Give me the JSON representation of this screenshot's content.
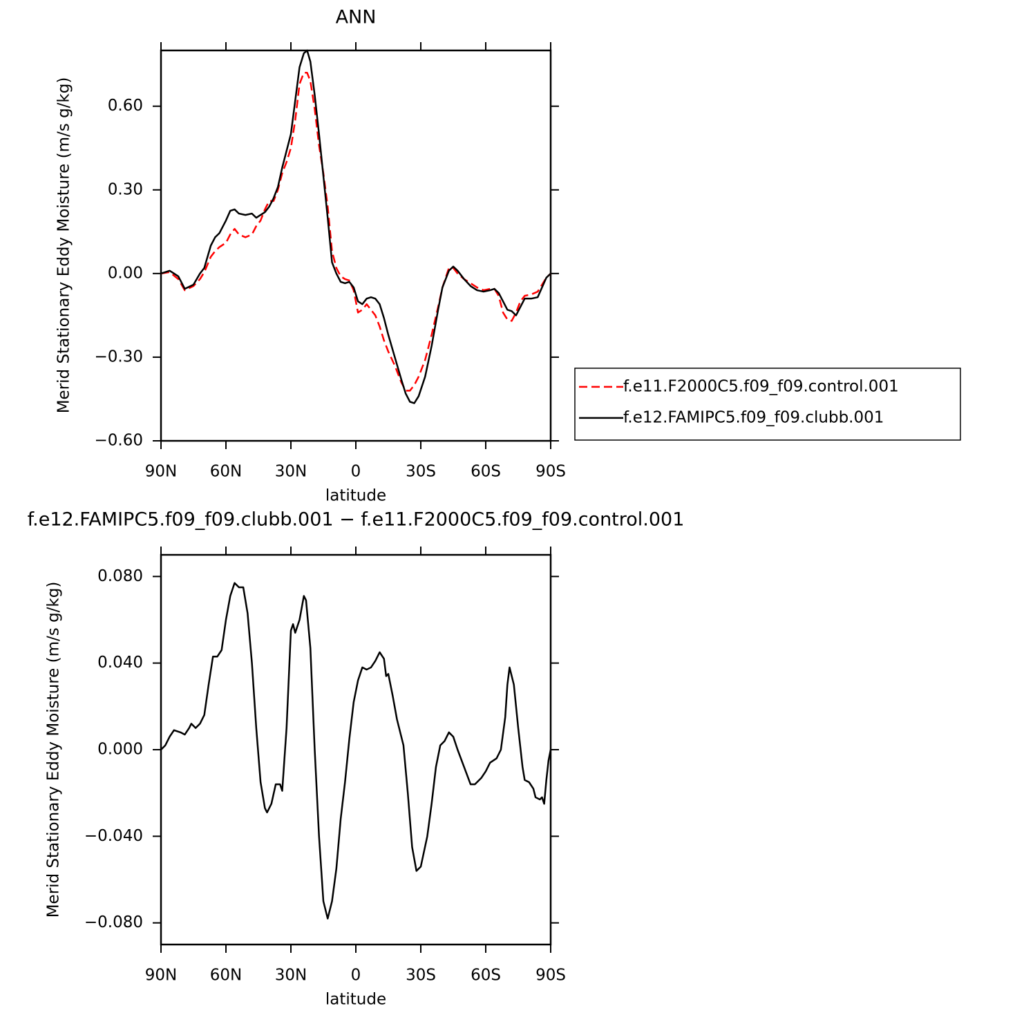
{
  "chart_data": [
    {
      "type": "line",
      "title": "ANN",
      "x_label": "latitude",
      "y_label": "Merid Stationary Eddy Moisture (m/s g/kg)",
      "xlim": [
        90,
        -90
      ],
      "xticks": [
        {
          "value": 90,
          "label": "90N"
        },
        {
          "value": 60,
          "label": "60N"
        },
        {
          "value": 30,
          "label": "30N"
        },
        0,
        {
          "value": -30,
          "label": "30S"
        },
        {
          "value": -60,
          "label": "60S"
        },
        {
          "value": -90,
          "label": "90S"
        }
      ],
      "ylim": [
        -0.6,
        0.8
      ],
      "yticks": [
        {
          "value": -0.6,
          "label": "−0.60"
        },
        {
          "value": -0.3,
          "label": "−0.30"
        },
        {
          "value": 0,
          "label": "0.00"
        },
        {
          "value": 0.3,
          "label": "0.30"
        },
        {
          "value": 0.6,
          "label": "0.60"
        }
      ],
      "legend": "right",
      "x": [
        90,
        86,
        82,
        79,
        75,
        72,
        70,
        67,
        65,
        63,
        60,
        58,
        56,
        54,
        51,
        48,
        46,
        44,
        42,
        40,
        38,
        36,
        34,
        32,
        30,
        28,
        26,
        24,
        22.5,
        21,
        19,
        17,
        15,
        13,
        11,
        9,
        7,
        5,
        3,
        1,
        -1,
        -3,
        -5,
        -7,
        -9,
        -11,
        -13,
        -15,
        -18,
        -21,
        -23,
        -25,
        -27,
        -29,
        -32,
        -35,
        -38,
        -40,
        -43,
        -45,
        -47,
        -50,
        -53,
        -56,
        -59,
        -62,
        -64,
        -66,
        -68,
        -70,
        -72,
        -74,
        -76,
        -78,
        -81,
        -84,
        -86,
        -88,
        -90
      ],
      "series": [
        {
          "name": "f.e11.F2000C5.f09_f09.control.001",
          "color": "#ff0000",
          "dashed": true,
          "values": [
            0.0,
            0.005,
            -0.02,
            -0.06,
            -0.045,
            -0.02,
            0.005,
            0.06,
            0.08,
            0.095,
            0.11,
            0.14,
            0.16,
            0.14,
            0.13,
            0.14,
            0.17,
            0.19,
            0.23,
            0.26,
            0.26,
            0.3,
            0.36,
            0.4,
            0.45,
            0.55,
            0.68,
            0.72,
            0.72,
            0.69,
            0.59,
            0.46,
            0.36,
            0.24,
            0.08,
            0.02,
            -0.01,
            -0.02,
            -0.025,
            -0.06,
            -0.14,
            -0.13,
            -0.11,
            -0.13,
            -0.15,
            -0.19,
            -0.24,
            -0.28,
            -0.33,
            -0.39,
            -0.42,
            -0.42,
            -0.4,
            -0.37,
            -0.31,
            -0.22,
            -0.12,
            -0.05,
            0.02,
            0.02,
            0.0,
            -0.02,
            -0.035,
            -0.05,
            -0.06,
            -0.055,
            -0.055,
            -0.08,
            -0.14,
            -0.165,
            -0.17,
            -0.14,
            -0.1,
            -0.08,
            -0.075,
            -0.065,
            -0.04,
            -0.015,
            0.0
          ]
        },
        {
          "name": "f.e12.FAMIPC5.f09_f09.clubb.001",
          "color": "#000000",
          "dashed": false,
          "values": [
            0.0,
            0.01,
            -0.01,
            -0.055,
            -0.04,
            0.0,
            0.02,
            0.1,
            0.13,
            0.145,
            0.19,
            0.225,
            0.23,
            0.215,
            0.21,
            0.215,
            0.2,
            0.21,
            0.22,
            0.24,
            0.27,
            0.31,
            0.38,
            0.44,
            0.5,
            0.62,
            0.74,
            0.79,
            0.8,
            0.76,
            0.64,
            0.5,
            0.35,
            0.2,
            0.04,
            0.0,
            -0.03,
            -0.035,
            -0.03,
            -0.05,
            -0.1,
            -0.11,
            -0.09,
            -0.085,
            -0.09,
            -0.11,
            -0.16,
            -0.22,
            -0.3,
            -0.38,
            -0.43,
            -0.46,
            -0.465,
            -0.44,
            -0.37,
            -0.26,
            -0.13,
            -0.05,
            0.01,
            0.025,
            0.01,
            -0.02,
            -0.045,
            -0.06,
            -0.065,
            -0.06,
            -0.055,
            -0.07,
            -0.1,
            -0.13,
            -0.135,
            -0.15,
            -0.12,
            -0.09,
            -0.09,
            -0.085,
            -0.05,
            -0.015,
            0.0
          ]
        }
      ]
    },
    {
      "type": "line",
      "title": "f.e12.FAMIPC5.f09_f09.clubb.001  −  f.e11.F2000C5.f09_f09.control.001",
      "x_label": "latitude",
      "y_label": "Merid Stationary Eddy Moisture (m/s g/kg)",
      "xlim": [
        90,
        -90
      ],
      "xticks": [
        {
          "value": 90,
          "label": "90N"
        },
        {
          "value": 60,
          "label": "60N"
        },
        {
          "value": 30,
          "label": "30N"
        },
        0,
        {
          "value": -30,
          "label": "30S"
        },
        {
          "value": -60,
          "label": "60S"
        },
        {
          "value": -90,
          "label": "90S"
        }
      ],
      "ylim": [
        -0.09,
        0.09
      ],
      "yticks": [
        {
          "value": -0.08,
          "label": "−0.080"
        },
        {
          "value": -0.04,
          "label": "−0.040"
        },
        {
          "value": 0,
          "label": "0.000"
        },
        {
          "value": 0.04,
          "label": "0.040"
        },
        {
          "value": 0.08,
          "label": "0.080"
        }
      ],
      "color": "#000000",
      "x": [
        90,
        88,
        86,
        84,
        81,
        79,
        77,
        76,
        74,
        72,
        70,
        68,
        66,
        64,
        62,
        60,
        58,
        56,
        54,
        52,
        50,
        48,
        46,
        44,
        42,
        41,
        39,
        37,
        35,
        34,
        32,
        30,
        29,
        28,
        26,
        24,
        23,
        21,
        19,
        17,
        15,
        13,
        11,
        9,
        7,
        5,
        3,
        1,
        -1,
        -3,
        -5,
        -7,
        -9,
        -11,
        -13,
        -14,
        -15,
        -17,
        -19,
        -22,
        -24,
        -26,
        -28,
        -30,
        -33,
        -35,
        -37,
        -39,
        -41,
        -43,
        -45,
        -47,
        -50,
        -53,
        -55,
        -58,
        -60,
        -62,
        -65,
        -67,
        -69,
        -70,
        -71,
        -72,
        -73,
        -75,
        -77,
        -78,
        -80,
        -82,
        -83,
        -85,
        -86,
        -87,
        -88,
        -89,
        -90
      ],
      "values": [
        0.0,
        0.002,
        0.006,
        0.009,
        0.008,
        0.007,
        0.01,
        0.012,
        0.01,
        0.012,
        0.016,
        0.03,
        0.043,
        0.043,
        0.046,
        0.06,
        0.071,
        0.077,
        0.075,
        0.075,
        0.063,
        0.04,
        0.01,
        -0.015,
        -0.027,
        -0.029,
        -0.025,
        -0.016,
        -0.016,
        -0.019,
        0.01,
        0.055,
        0.058,
        0.054,
        0.06,
        0.071,
        0.069,
        0.047,
        0.0,
        -0.04,
        -0.07,
        -0.078,
        -0.07,
        -0.055,
        -0.032,
        -0.015,
        0.005,
        0.022,
        0.032,
        0.038,
        0.037,
        0.038,
        0.041,
        0.045,
        0.042,
        0.034,
        0.035,
        0.025,
        0.014,
        0.002,
        -0.02,
        -0.045,
        -0.056,
        -0.054,
        -0.04,
        -0.025,
        -0.008,
        0.002,
        0.004,
        0.008,
        0.006,
        0.0,
        -0.008,
        -0.016,
        -0.016,
        -0.013,
        -0.01,
        -0.006,
        -0.004,
        0.0,
        0.015,
        0.03,
        0.038,
        0.034,
        0.03,
        0.01,
        -0.008,
        -0.014,
        -0.015,
        -0.018,
        -0.022,
        -0.023,
        -0.022,
        -0.025,
        -0.014,
        -0.005,
        0.0
      ]
    }
  ]
}
